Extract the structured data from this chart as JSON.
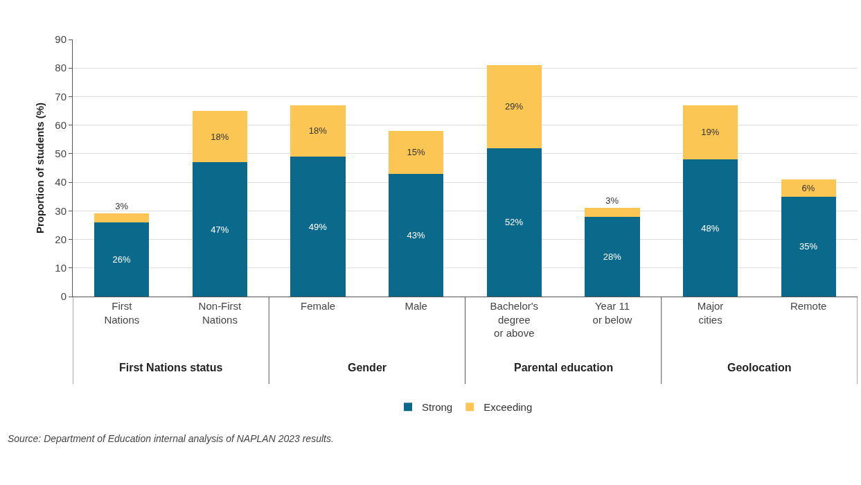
{
  "chart_data": {
    "type": "bar",
    "stacked": true,
    "ylabel": "Proportion of students (%)",
    "categories": [
      "First Nations",
      "Non-First Nations",
      "Female",
      "Male",
      "Bachelor's degree or above",
      "Year 11 or below",
      "Major cities",
      "Remote"
    ],
    "series": [
      {
        "name": "Strong",
        "color": "#0b6a8b",
        "values": [
          26,
          47,
          49,
          43,
          52,
          28,
          48,
          35
        ],
        "value_labels": [
          "26%",
          "47%",
          "49%",
          "43%",
          "52%",
          "28%",
          "48%",
          "35%"
        ]
      },
      {
        "name": "Exceeding",
        "color": "#fcc655",
        "values": [
          3,
          18,
          18,
          15,
          29,
          3,
          19,
          6
        ],
        "value_labels": [
          "3%",
          "18%",
          "18%",
          "15%",
          "29%",
          "3%",
          "19%",
          "6%"
        ]
      }
    ],
    "ylim": [
      0,
      90
    ],
    "yticks": [
      0,
      10,
      20,
      30,
      40,
      50,
      60,
      70,
      80,
      90
    ],
    "grid": "y",
    "legend": "bottom",
    "annotations": [
      "First Nations status",
      "Gender",
      "Parental education",
      "Geolocation",
      "Source: Department of Education internal analysis of NAPLAN 2023 results."
    ]
  }
}
